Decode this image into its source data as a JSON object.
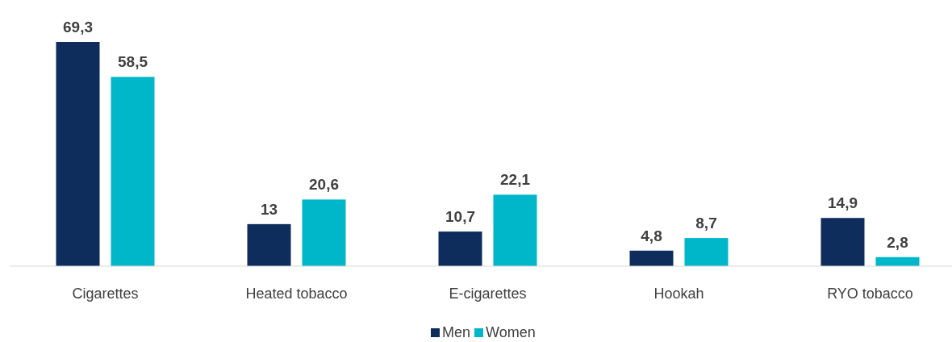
{
  "chart_data": {
    "type": "bar",
    "categories": [
      "Cigarettes",
      "Heated tobacco",
      "E-cigarettes",
      "Hookah",
      "RYO tobacco"
    ],
    "series": [
      {
        "name": "Men",
        "color": "#0e2c5c",
        "values": [
          69.3,
          13,
          10.7,
          4.8,
          14.9
        ],
        "value_labels": [
          "69,3",
          "13",
          "10,7",
          "4,8",
          "14,9"
        ]
      },
      {
        "name": "Women",
        "color": "#00b7c9",
        "values": [
          58.5,
          20.6,
          22.1,
          8.7,
          2.8
        ],
        "value_labels": [
          "58,5",
          "20,6",
          "22,1",
          "8,7",
          "2,8"
        ]
      }
    ],
    "legend": "bottom",
    "grid": false
  }
}
